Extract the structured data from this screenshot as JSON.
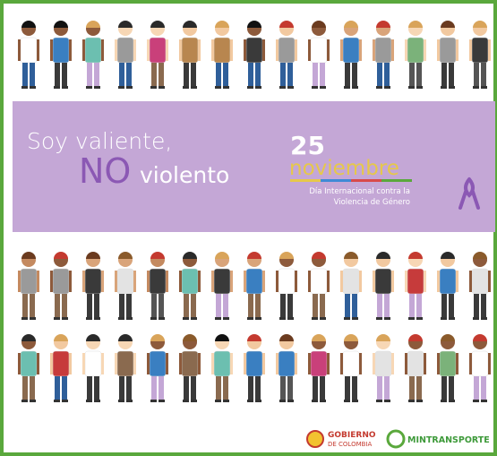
{
  "banner": {
    "line1": "Soy valiente,",
    "no": "NO",
    "violento": "violento",
    "day": "25",
    "month": "noviembre",
    "caption1": "Día Internacional contra la",
    "caption2": "Violencia de Género"
  },
  "logos": {
    "gobierno1": "GOBIERNO",
    "gobierno2": "DE COLOMBIA",
    "mintransporte": "MINTRANSPORTE"
  }
}
